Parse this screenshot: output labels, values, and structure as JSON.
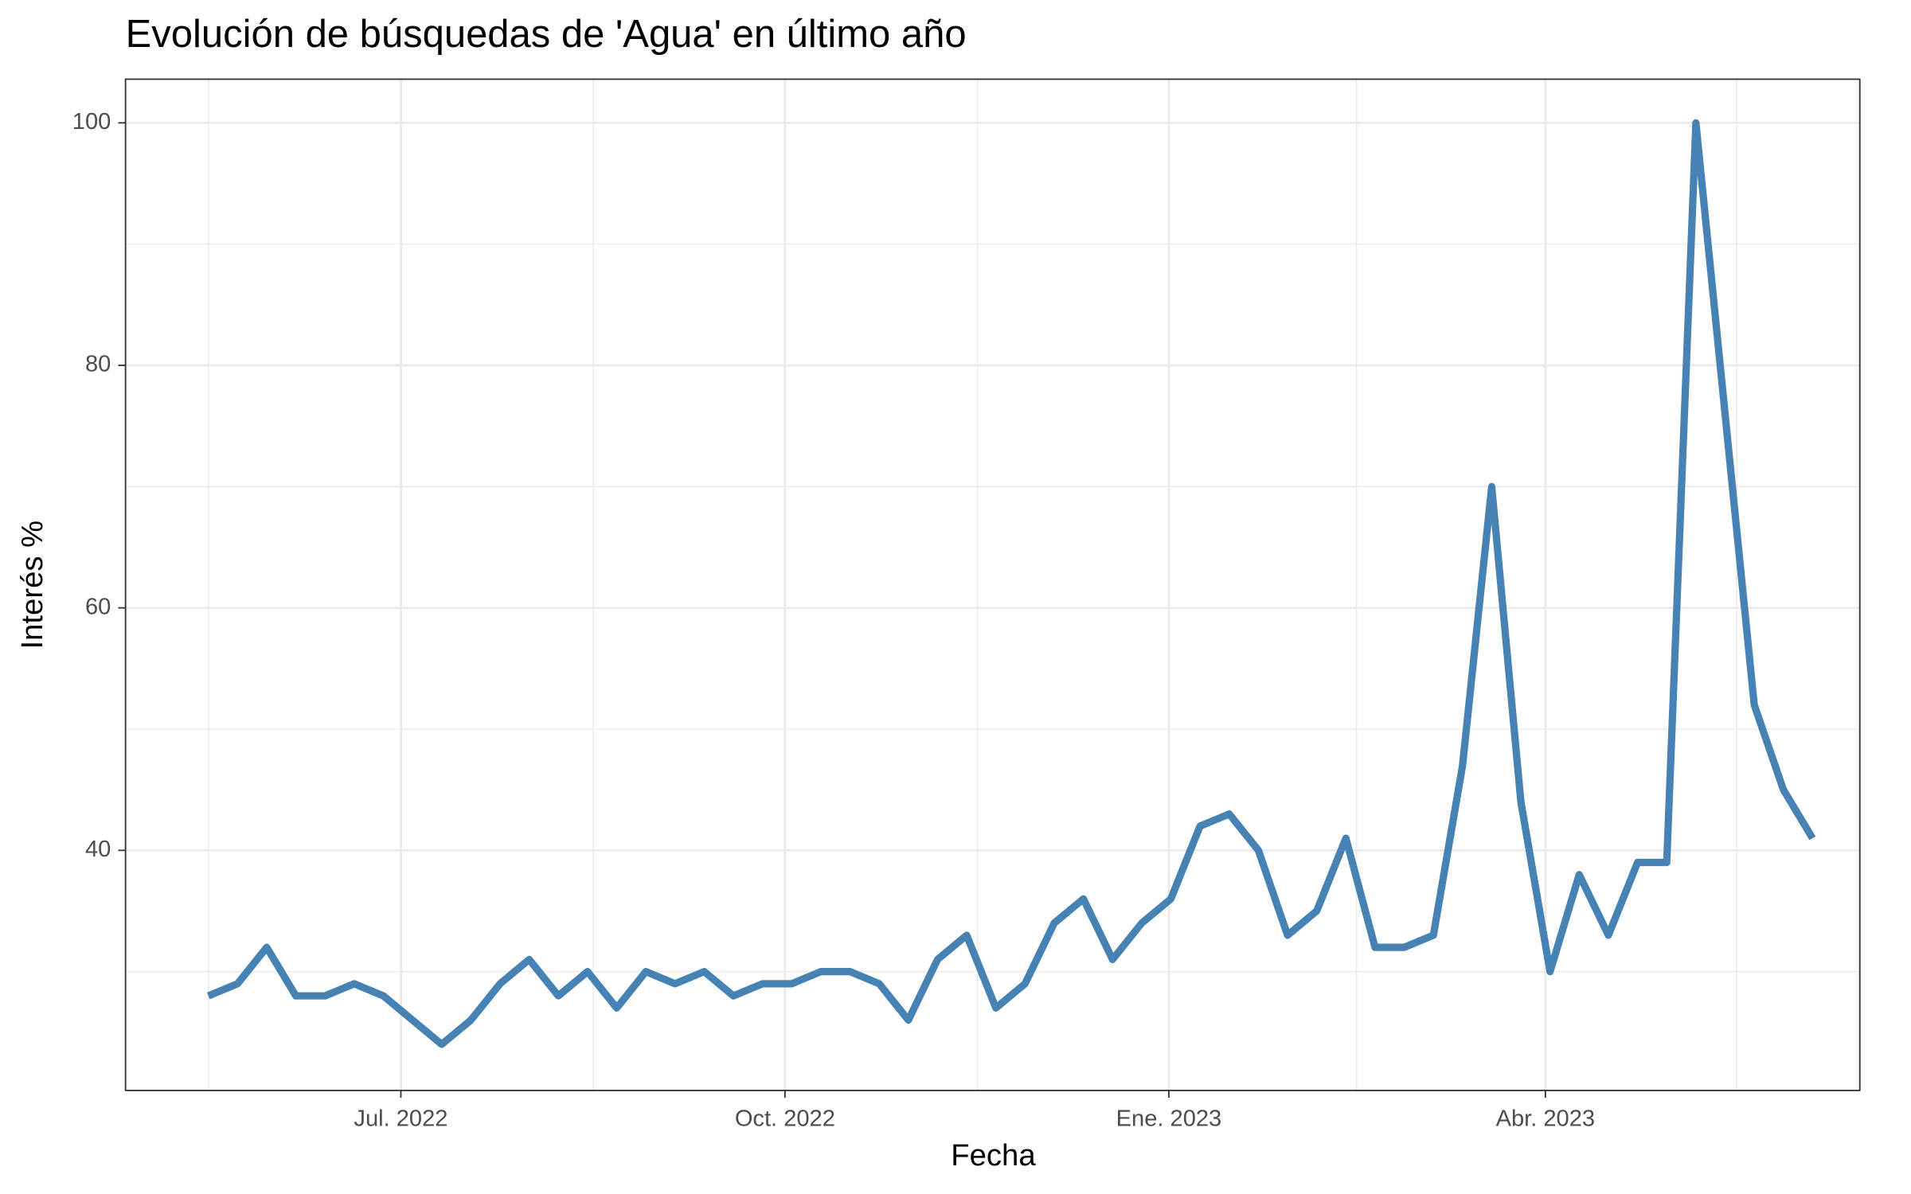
{
  "chart_data": {
    "type": "line",
    "title": "Evolución de búsquedas de 'Agua' en último año",
    "x_label": "Fecha",
    "y_label": "Interés %",
    "x": [
      0,
      1,
      2,
      3,
      4,
      5,
      6,
      7,
      8,
      9,
      10,
      11,
      12,
      13,
      14,
      15,
      16,
      17,
      18,
      19,
      20,
      21,
      22,
      23,
      24,
      25,
      26,
      27,
      28,
      29,
      30,
      31,
      32,
      33,
      34,
      35,
      36,
      37,
      38,
      39,
      40,
      41,
      42,
      43,
      44,
      45,
      46,
      47,
      48,
      49,
      50,
      51,
      52,
      53,
      54,
      55
    ],
    "series": [
      {
        "color": "#4682b4",
        "values": [
          28,
          29,
          32,
          28,
          28,
          29,
          28,
          26,
          24,
          26,
          29,
          31,
          28,
          30,
          27,
          30,
          29,
          30,
          28,
          29,
          29,
          30,
          30,
          29,
          26,
          31,
          33,
          27,
          29,
          34,
          36,
          31,
          34,
          36,
          42,
          43,
          40,
          33,
          35,
          41,
          32,
          32,
          33,
          47,
          70,
          44,
          30,
          38,
          33,
          39,
          39,
          100,
          76,
          52,
          45,
          41
        ]
      }
    ],
    "xlim": [
      -2.84,
      56.62
    ],
    "xticks": [
      {
        "value": 6.6,
        "label": "Jul. 2022"
      },
      {
        "value": 19.77,
        "label": "Oct. 2022"
      },
      {
        "value": 32.93,
        "label": "Ene. 2023"
      },
      {
        "value": 45.84,
        "label": "Abr. 2023"
      }
    ],
    "x_minor_grid": [
      0,
      13.2,
      26.37,
      39.36,
      52.4
    ],
    "ylim": [
      20.2,
      103.6
    ],
    "yticks": [
      40,
      60,
      80,
      100
    ],
    "y_minor_grid": [
      30,
      50,
      70,
      90
    ],
    "grid": true
  }
}
